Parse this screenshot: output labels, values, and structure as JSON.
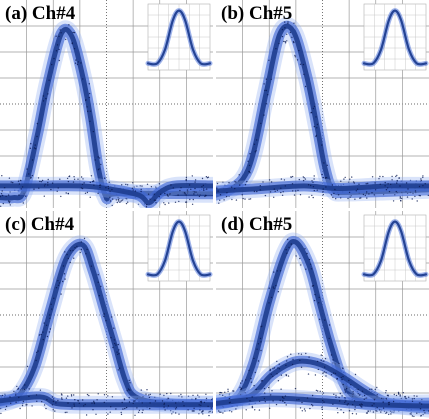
{
  "colors": {
    "trace_core": "#1e3d8f",
    "trace_mid": "#3f67d6",
    "trace_halo": "#93aef0",
    "trace_dot": "#0a1a52",
    "grid": "#9a9a9a",
    "grid_dot": "#3a3a3a",
    "background": "#ffffff",
    "label": "#000000"
  },
  "chart_data": [
    {
      "type": "eye-diagram",
      "panel": "a",
      "title": "(a) Ch#4",
      "grid": true,
      "grid_divisions": [
        8,
        8
      ],
      "traces": [
        {
          "name": "",
          "points": [
            [
              0,
              -0.1
            ],
            [
              0.5,
              -0.1
            ],
            [
              0.9,
              0.15
            ],
            [
              1.4,
              2.3
            ],
            [
              1.8,
              4.3
            ],
            [
              2.3,
              6.2
            ],
            [
              2.7,
              6.1
            ],
            [
              3.1,
              4.6
            ],
            [
              3.4,
              3.0
            ],
            [
              3.7,
              1.0
            ],
            [
              4.0,
              -0.1
            ],
            [
              4.4,
              0.05
            ],
            [
              8,
              0.05
            ]
          ]
        },
        {
          "name": "",
          "points": [
            [
              0,
              0.35
            ],
            [
              1.7,
              0.35
            ],
            [
              3.0,
              0.35
            ],
            [
              4.0,
              0.25
            ],
            [
              5.2,
              0.0
            ],
            [
              5.6,
              -0.3
            ],
            [
              6.0,
              0.1
            ],
            [
              6.6,
              0.35
            ],
            [
              8,
              0.35
            ]
          ]
        }
      ],
      "inset": {
        "grid": true,
        "points": [
          [
            0,
            0.8
          ],
          [
            1.2,
            0.8
          ],
          [
            2.2,
            2.5
          ],
          [
            3.2,
            6.0
          ],
          [
            4.0,
            7.2
          ],
          [
            4.8,
            6.0
          ],
          [
            5.8,
            2.5
          ],
          [
            6.8,
            0.8
          ],
          [
            8,
            0.8
          ]
        ]
      }
    },
    {
      "type": "eye-diagram",
      "panel": "b",
      "title": "(b) Ch#5",
      "grid": true,
      "grid_divisions": [
        8,
        8
      ],
      "traces": [
        {
          "name": "",
          "points": [
            [
              0,
              0.0
            ],
            [
              0.4,
              0.15
            ],
            [
              1.0,
              0.6
            ],
            [
              1.4,
              1.6
            ],
            [
              1.9,
              4.0
            ],
            [
              2.4,
              6.2
            ],
            [
              2.9,
              6.3
            ],
            [
              3.4,
              4.6
            ],
            [
              3.8,
              2.6
            ],
            [
              4.1,
              1.0
            ],
            [
              4.4,
              0.2
            ],
            [
              5.0,
              0.1
            ],
            [
              8,
              0.2
            ]
          ]
        },
        {
          "name": "",
          "points": [
            [
              0,
              0.15
            ],
            [
              1.7,
              0.25
            ],
            [
              3.3,
              0.35
            ],
            [
              4.5,
              0.25
            ],
            [
              5.6,
              0.3
            ],
            [
              6.5,
              0.35
            ],
            [
              8,
              0.35
            ]
          ]
        }
      ],
      "inset": {
        "grid": true,
        "points": [
          [
            0,
            0.8
          ],
          [
            1.2,
            0.8
          ],
          [
            2.2,
            2.5
          ],
          [
            3.2,
            6.0
          ],
          [
            4.0,
            7.2
          ],
          [
            4.8,
            6.0
          ],
          [
            5.8,
            2.5
          ],
          [
            6.8,
            0.8
          ],
          [
            8,
            0.8
          ]
        ]
      }
    },
    {
      "type": "eye-diagram",
      "panel": "c",
      "title": "(c) Ch#4",
      "grid": true,
      "grid_divisions": [
        8,
        8
      ],
      "traces": [
        {
          "name": "",
          "points": [
            [
              0,
              0.1
            ],
            [
              0.7,
              0.4
            ],
            [
              1.3,
              1.5
            ],
            [
              1.9,
              3.7
            ],
            [
              2.5,
              5.7
            ],
            [
              3.1,
              6.2
            ],
            [
              3.5,
              5.2
            ],
            [
              3.9,
              3.8
            ],
            [
              4.3,
              2.4
            ],
            [
              4.7,
              1.0
            ],
            [
              5.1,
              0.35
            ],
            [
              6.2,
              0.1
            ],
            [
              8,
              0.05
            ]
          ]
        },
        {
          "name": "",
          "points": [
            [
              0,
              0.2
            ],
            [
              1.5,
              0.35
            ],
            [
              2.1,
              0.1
            ],
            [
              3.0,
              0.05
            ],
            [
              4.5,
              0.05
            ],
            [
              5.5,
              0.05
            ],
            [
              8,
              0.05
            ]
          ]
        }
      ],
      "inset": {
        "grid": true,
        "points": [
          [
            0,
            0.8
          ],
          [
            1.2,
            0.8
          ],
          [
            2.2,
            2.5
          ],
          [
            3.2,
            6.0
          ],
          [
            4.0,
            7.2
          ],
          [
            4.8,
            6.0
          ],
          [
            5.8,
            2.5
          ],
          [
            6.8,
            0.8
          ],
          [
            8,
            0.8
          ]
        ]
      }
    },
    {
      "type": "eye-diagram",
      "panel": "d",
      "title": "(d) Ch#5",
      "grid": true,
      "grid_divisions": [
        8,
        8
      ],
      "traces": [
        {
          "name": "",
          "points": [
            [
              0,
              0.1
            ],
            [
              0.8,
              0.3
            ],
            [
              1.4,
              1.6
            ],
            [
              2.0,
              4.0
            ],
            [
              2.6,
              5.9
            ],
            [
              3.0,
              6.3
            ],
            [
              3.5,
              5.4
            ],
            [
              3.9,
              3.9
            ],
            [
              4.3,
              2.4
            ],
            [
              4.8,
              0.9
            ],
            [
              5.3,
              0.3
            ],
            [
              6.4,
              0.1
            ],
            [
              8,
              0.1
            ]
          ]
        },
        {
          "name": "",
          "points": [
            [
              0,
              0.05
            ],
            [
              1.3,
              0.4
            ],
            [
              2.1,
              1.2
            ],
            [
              3.0,
              1.7
            ],
            [
              3.9,
              1.6
            ],
            [
              4.8,
              1.1
            ],
            [
              5.7,
              0.5
            ],
            [
              6.5,
              0.1
            ],
            [
              8,
              -0.1
            ]
          ]
        },
        {
          "name": "",
          "points": [
            [
              0,
              0.1
            ],
            [
              2.0,
              0.3
            ],
            [
              4.0,
              0.2
            ],
            [
              6.0,
              0.05
            ],
            [
              8,
              0.0
            ]
          ]
        }
      ],
      "inset": {
        "grid": true,
        "points": [
          [
            0,
            0.8
          ],
          [
            1.2,
            0.8
          ],
          [
            2.2,
            2.5
          ],
          [
            3.2,
            6.0
          ],
          [
            4.0,
            7.2
          ],
          [
            4.8,
            6.0
          ],
          [
            5.8,
            2.5
          ],
          [
            6.8,
            0.8
          ],
          [
            8,
            0.8
          ]
        ]
      }
    }
  ]
}
